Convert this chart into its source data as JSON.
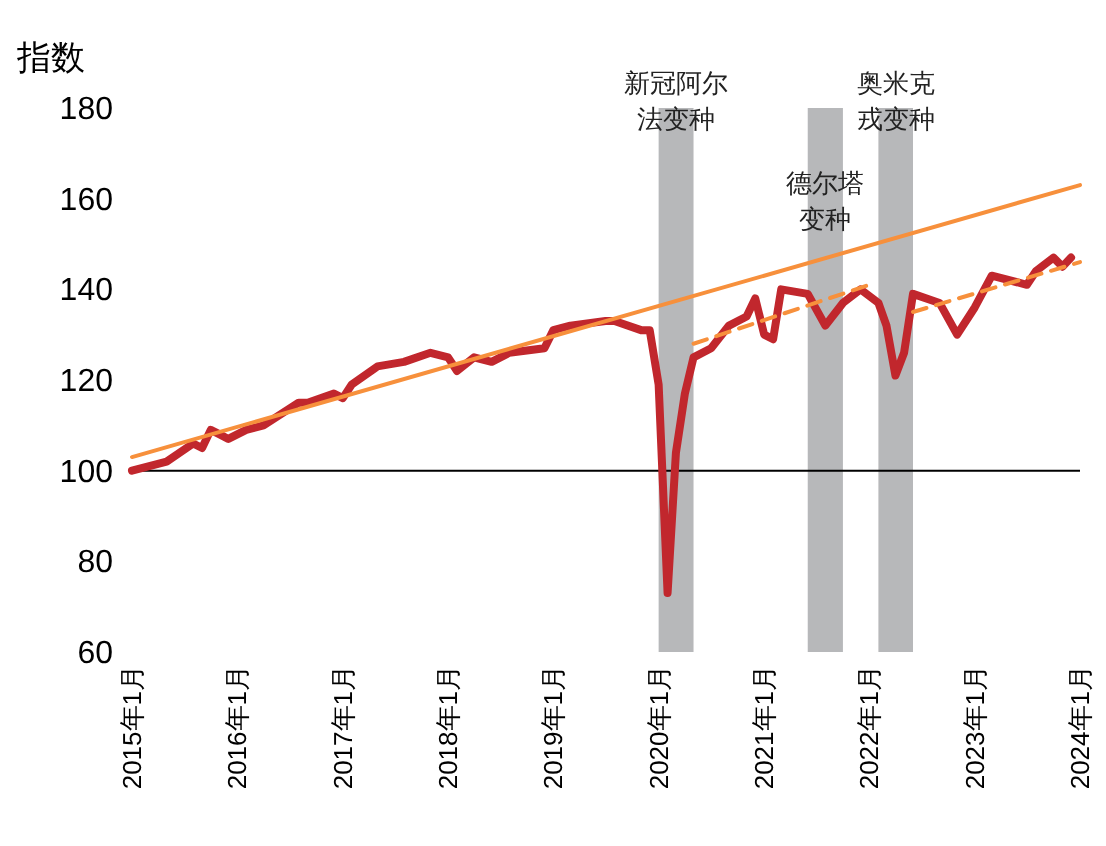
{
  "chart_data": {
    "type": "line",
    "ylabel": "指数",
    "x": [
      "2015-01",
      "2015-05",
      "2015-08",
      "2015-09",
      "2015-10",
      "2015-11",
      "2015-12",
      "2016-02",
      "2016-04",
      "2016-08",
      "2016-09",
      "2016-12",
      "2017-01",
      "2017-02",
      "2017-05",
      "2017-08",
      "2017-11",
      "2018-01",
      "2018-02",
      "2018-04",
      "2018-06",
      "2018-08",
      "2018-12",
      "2019-01",
      "2019-03",
      "2019-07",
      "2019-08",
      "2019-11",
      "2019-12",
      "2020-01",
      "2020-02",
      "2020-03",
      "2020-04",
      "2020-05",
      "2020-07",
      "2020-09",
      "2020-11",
      "2020-12",
      "2021-01",
      "2021-02",
      "2021-03",
      "2021-06",
      "2021-08",
      "2021-10",
      "2021-12",
      "2022-02",
      "2022-03",
      "2022-04",
      "2022-05",
      "2022-06",
      "2022-09",
      "2022-11",
      "2023-01",
      "2023-03",
      "2023-07",
      "2023-08",
      "2023-10",
      "2023-11",
      "2023-12"
    ],
    "series": [
      {
        "color": "#c1272d",
        "values": [
          100,
          102,
          106,
          105,
          109,
          108,
          107,
          109,
          110,
          115,
          115,
          117,
          116,
          119,
          123,
          124,
          126,
          125,
          122,
          125,
          124,
          126,
          127,
          131,
          132,
          133,
          133,
          131,
          131,
          119,
          73,
          104,
          117,
          125,
          127,
          132,
          134,
          138,
          130,
          129,
          140,
          139,
          132,
          137,
          140,
          137,
          132,
          121,
          126,
          139,
          137,
          130,
          136,
          143,
          141,
          144,
          147,
          145,
          147
        ]
      },
      {
        "color": "#f7903c",
        "x": [
          "2015-01",
          "2024-01"
        ],
        "values": [
          103,
          163
        ]
      },
      {
        "color": "#f7903c",
        "line_style": "dashed",
        "x": [
          "2020-05",
          "2022-01"
        ],
        "values": [
          128,
          141
        ]
      },
      {
        "color": "#f7903c",
        "line_style": "dashed",
        "x": [
          "2022-06",
          "2024-01"
        ],
        "values": [
          135,
          146
        ]
      }
    ],
    "xlim": [
      "2015-01",
      "2024-01"
    ],
    "xticks": [
      {
        "value": "2015-01",
        "label": "2015年1月"
      },
      {
        "value": "2016-01",
        "label": "2016年1月"
      },
      {
        "value": "2017-01",
        "label": "2017年1月"
      },
      {
        "value": "2018-01",
        "label": "2018年1月"
      },
      {
        "value": "2019-01",
        "label": "2019年1月"
      },
      {
        "value": "2020-01",
        "label": "2020年1月"
      },
      {
        "value": "2021-01",
        "label": "2021年1月"
      },
      {
        "value": "2022-01",
        "label": "2022年1月"
      },
      {
        "value": "2023-01",
        "label": "2023年1月"
      },
      {
        "value": "2024-01",
        "label": "2024年1月"
      }
    ],
    "ylim": [
      60,
      180
    ],
    "yticks": [
      60,
      80,
      100,
      120,
      140,
      160,
      180
    ],
    "ref_lines": [
      {
        "axis": "y",
        "value": 100,
        "color": "#000000"
      }
    ],
    "bands": [
      {
        "axis": "x",
        "from": "2020-01",
        "to": "2020-05",
        "label": "新冠阿尔法变种",
        "color": "#b7b8ba"
      },
      {
        "axis": "x",
        "from": "2021-06",
        "to": "2021-10",
        "label": "德尔塔变种",
        "color": "#b7b8ba"
      },
      {
        "axis": "x",
        "from": "2022-02",
        "to": "2022-06",
        "label": "奥米克戎变种",
        "color": "#b7b8ba"
      }
    ]
  }
}
